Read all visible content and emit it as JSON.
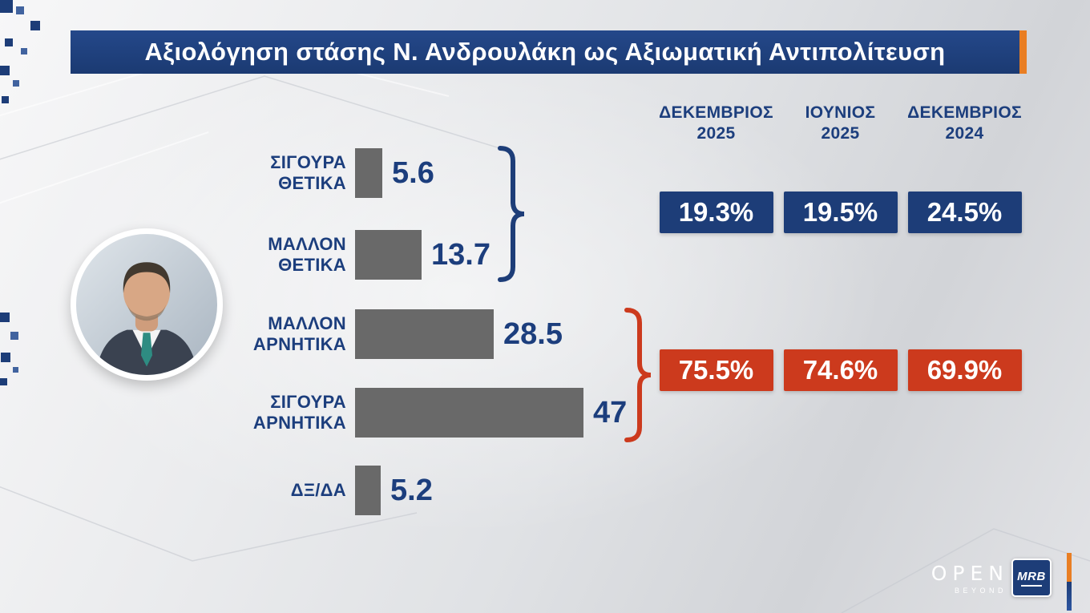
{
  "colors": {
    "navy": "#1d3d78",
    "orange": "#e97e23",
    "red": "#cc3a1d",
    "bar_gray": "#696969",
    "label_navy": "#1c3e7d",
    "white": "#ffffff"
  },
  "header": {
    "title": "Αξιολόγηση στάσης Ν. Ανδρουλάκη ως Αξιωματική Αντιπολίτευση"
  },
  "chart_data": {
    "type": "bar",
    "orientation": "horizontal",
    "title": "Αξιολόγηση στάσης Ν. Ανδρουλάκη ως Αξιωματική Αντιπολίτευση",
    "categories": [
      "ΣΙΓΟΥΡΑ ΘΕΤΙΚΑ",
      "ΜΑΛΛΟΝ ΘΕΤΙΚΑ",
      "ΜΑΛΛΟΝ ΑΡΝΗΤΙΚΑ",
      "ΣΙΓΟΥΡΑ ΑΡΝΗΤΙΚΑ",
      "ΔΞ/ΔΑ"
    ],
    "values": [
      5.6,
      13.7,
      28.5,
      47,
      5.2
    ],
    "xlim": [
      0,
      50
    ],
    "bar_color": "#696969",
    "grid": false,
    "legend": false
  },
  "comparison": {
    "columns": [
      {
        "month": "ΔΕΚΕΜΒΡΙΟΣ",
        "year": "2025"
      },
      {
        "month": "ΙΟΥΝΙΟΣ",
        "year": "2025"
      },
      {
        "month": "ΔΕΚΕΜΒΡΙΟΣ",
        "year": "2024"
      }
    ],
    "positive_row": {
      "values": [
        "19.3%",
        "19.5%",
        "24.5%"
      ],
      "box_color": "#1d3d78"
    },
    "negative_row": {
      "values": [
        "75.5%",
        "74.6%",
        "69.9%"
      ],
      "box_color": "#cc3a1d"
    }
  },
  "branding": {
    "open": "OPEN",
    "open_sub": "BEYOND",
    "mrb": "MRB"
  }
}
